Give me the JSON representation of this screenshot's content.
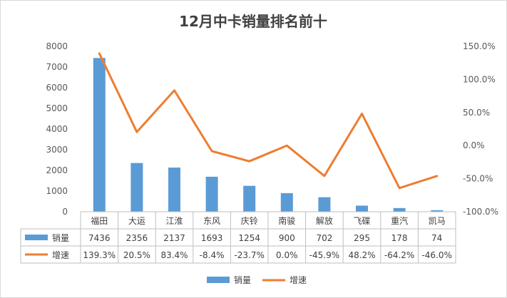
{
  "chart_data": {
    "type": "bar",
    "title": "12月中卡销量排名前十",
    "categories": [
      "福田",
      "大运",
      "江淮",
      "东风",
      "庆铃",
      "南骏",
      "解放",
      "飞碟",
      "重汽",
      "凯马"
    ],
    "series": [
      {
        "name": "销量",
        "type": "bar",
        "axis": "left",
        "color": "#5b9bd5",
        "values": [
          7436,
          2356,
          2137,
          1693,
          1254,
          900,
          702,
          295,
          178,
          74
        ],
        "labels": [
          "7436",
          "2356",
          "2137",
          "1693",
          "1254",
          "900",
          "702",
          "295",
          "178",
          "74"
        ]
      },
      {
        "name": "增速",
        "type": "line",
        "axis": "right",
        "color": "#ed7d31",
        "values": [
          139.3,
          20.5,
          83.4,
          -8.4,
          -23.7,
          0.0,
          -45.9,
          48.2,
          -64.2,
          -46.0
        ],
        "labels": [
          "139.3%",
          "20.5%",
          "83.4%",
          "-8.4%",
          "-23.7%",
          "0.0%",
          "-45.9%",
          "48.2%",
          "-64.2%",
          "-46.0%"
        ]
      }
    ],
    "y_left": {
      "min": 0,
      "max": 8000,
      "ticks": [
        0,
        1000,
        2000,
        3000,
        4000,
        5000,
        6000,
        7000,
        8000
      ],
      "tick_labels": [
        "0",
        "1000",
        "2000",
        "3000",
        "4000",
        "5000",
        "6000",
        "7000",
        "8000"
      ]
    },
    "y_right": {
      "min": -100,
      "max": 150,
      "ticks": [
        -100,
        -50,
        0,
        50,
        100,
        150
      ],
      "tick_labels": [
        "-100.0%",
        "-50.0%",
        "0.0%",
        "50.0%",
        "100.0%",
        "150.0%"
      ]
    },
    "grid": false,
    "data_table": true,
    "legend_position": "bottom"
  }
}
